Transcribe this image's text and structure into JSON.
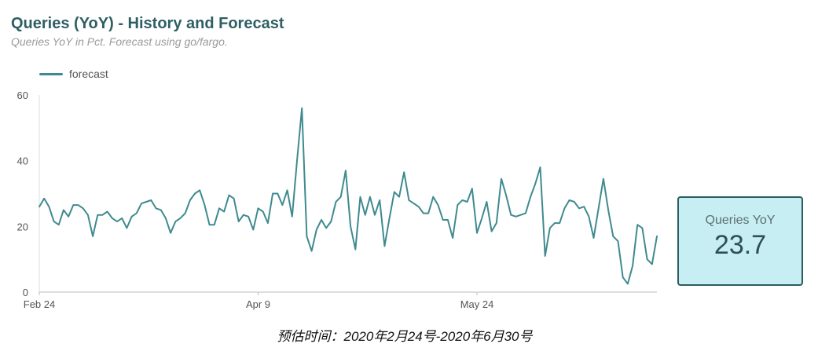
{
  "header": {
    "title": "Queries (YoY) - History and Forecast",
    "subtitle": "Queries YoY in Pct. Forecast using go/fargo."
  },
  "legend": {
    "label": "forecast",
    "color": "#3f8a8f"
  },
  "scorecard": {
    "label": "Queries YoY",
    "value": "23.7"
  },
  "caption": "预估时间：2020年2月24号-2020年6月30号",
  "chart_data": {
    "type": "line",
    "x_start": "2020-02-24",
    "x_end": "2020-06-30",
    "ylim": [
      0,
      60
    ],
    "yticks": [
      0,
      20,
      40,
      60
    ],
    "xticks": [
      {
        "label": "Feb 24",
        "day": 0
      },
      {
        "label": "Apr 9",
        "day": 45
      },
      {
        "label": "May 24",
        "day": 90
      }
    ],
    "series": [
      {
        "name": "forecast",
        "color": "#3f8a8f",
        "values": [
          26,
          28.5,
          26,
          21.5,
          20.5,
          25,
          23,
          26.5,
          26.5,
          25.5,
          23.5,
          17,
          23.5,
          23.5,
          24.5,
          22.5,
          21.5,
          22.5,
          19.5,
          23,
          24,
          27,
          27.5,
          28,
          25.5,
          25,
          22.5,
          18,
          21.5,
          22.5,
          24,
          28,
          30,
          31,
          26.5,
          20.5,
          20.5,
          25.5,
          24.5,
          29.5,
          28.5,
          21.5,
          23.5,
          23,
          19,
          25.5,
          24.5,
          21,
          30,
          30,
          26.5,
          31,
          23,
          40,
          56,
          17,
          12.5,
          19,
          22,
          19.5,
          21.5,
          27.5,
          29,
          37,
          20,
          13,
          29,
          23.5,
          29,
          23.5,
          28,
          14,
          22.5,
          30.5,
          29,
          36.5,
          28,
          27,
          26,
          24,
          24,
          29,
          26.5,
          22,
          22,
          16.5,
          26.5,
          28,
          27.5,
          31.5,
          18,
          22.5,
          27.5,
          18.5,
          21,
          34.5,
          29.5,
          23.5,
          23,
          23.5,
          24,
          29,
          33,
          38,
          11,
          19.5,
          21,
          21,
          25.5,
          28,
          27.5,
          25.5,
          26,
          23,
          16.5,
          25.5,
          34.5,
          25,
          17,
          15.5,
          4.5,
          2.5,
          8,
          20.5,
          19.5,
          10,
          8.5,
          17
        ]
      }
    ],
    "grid": false,
    "legend_position": "top-left"
  }
}
